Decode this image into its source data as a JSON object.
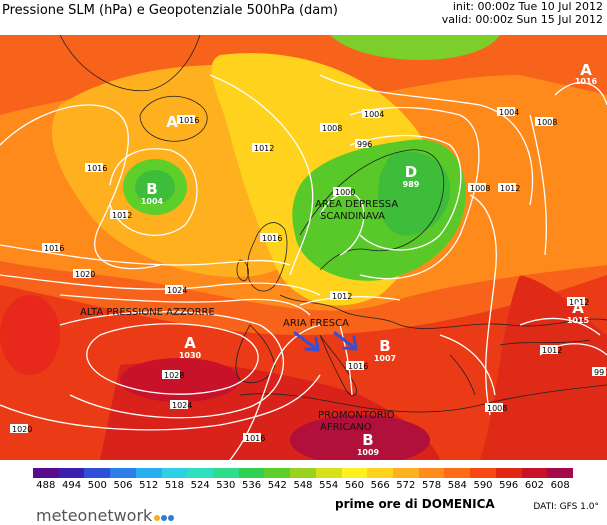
{
  "header": {
    "title": "Pressione SLM (hPa) e Geopotenziale 500hPa (dam)",
    "init": "init: 00:00z Tue 10 Jul 2012",
    "valid": "valid: 00:00z Sun 15 Jul 2012"
  },
  "annotations": {
    "azores": "ALTA PRESSIONE AZZORRE",
    "depression_line1": "AREA DEPRESSA",
    "depression_line2": "SCANDINAVA",
    "cool_air": "ARIA FRESCA",
    "african_line1": "PROMONTORIO",
    "african_line2": "AFRICANO"
  },
  "centers": [
    {
      "letter": "A",
      "value": "",
      "color": "#ffffff"
    },
    {
      "letter": "B",
      "value": "1004",
      "color": "#ffffff"
    },
    {
      "letter": "A",
      "value": "1016",
      "color": "#ffffff"
    },
    {
      "letter": "D",
      "value": "989",
      "color": "#ffffff"
    },
    {
      "letter": "A",
      "value": "1030",
      "color": "#ffffff"
    },
    {
      "letter": "B",
      "value": "1007",
      "color": "#ffffff"
    },
    {
      "letter": "A",
      "value": "1015",
      "color": "#ffffff"
    },
    {
      "letter": "B",
      "value": "1009",
      "color": "#ffffff"
    }
  ],
  "isobar_labels": [
    "1016",
    "1012",
    "1016",
    "1008",
    "1004",
    "996",
    "1012",
    "1000",
    "1008",
    "1004",
    "1012",
    "1008",
    "1016",
    "1020",
    "1024",
    "1012",
    "1016",
    "1028",
    "1024",
    "1020",
    "1016",
    "1012",
    "1016",
    "1008",
    "1012",
    "99"
  ],
  "colorbar": {
    "ticks": [
      "488",
      "494",
      "500",
      "506",
      "512",
      "518",
      "524",
      "530",
      "536",
      "542",
      "548",
      "554",
      "560",
      "566",
      "572",
      "578",
      "584",
      "590",
      "596",
      "602",
      "608"
    ],
    "colors": [
      "#5a0a8c",
      "#3a1fb0",
      "#2e4fd6",
      "#2c7fe8",
      "#29aef0",
      "#2fd0e6",
      "#2fe0c0",
      "#2edc8c",
      "#30d050",
      "#5ccf2a",
      "#9ad31e",
      "#d6e11a",
      "#fff020",
      "#ffd21e",
      "#ffb01e",
      "#ff8c1a",
      "#ff6a17",
      "#f84814",
      "#e22812",
      "#c8122a",
      "#a40a4a"
    ]
  },
  "caption": "prime ore di DOMENICA",
  "dati": "DATI:  GFS  1.0°",
  "logo": {
    "text": "meteonetwork",
    "dot_colors": [
      "#f2b01e",
      "#2f7fd0",
      "#2f7fd0"
    ]
  }
}
